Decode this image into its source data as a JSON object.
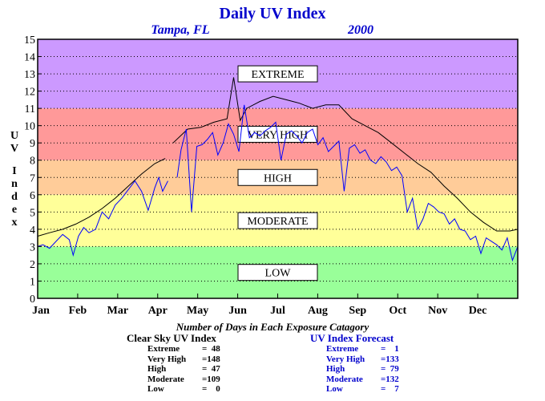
{
  "colors": {
    "title": "#0000cc",
    "forecast_line": "#0000ff",
    "clear_sky_line": "#000000",
    "band_low": "#99ff99",
    "band_moderate": "#ffff99",
    "band_high": "#ffcc99",
    "band_very_high": "#ff9999",
    "band_extreme": "#cc99ff"
  },
  "chart_data": {
    "type": "line",
    "title": "Daily UV Index",
    "subtitle_location": "Tampa, FL",
    "subtitle_year": "2000",
    "ylabel": "U V I n d e x",
    "ylim": [
      0,
      15
    ],
    "yticks": [
      "0",
      "1",
      "2",
      "3",
      "4",
      "5",
      "6",
      "7",
      "8",
      "9",
      "10",
      "11",
      "12",
      "13",
      "14",
      "15"
    ],
    "x_month_labels": [
      "Jan",
      "Feb",
      "Mar",
      "Apr",
      "May",
      "Jun",
      "Jul",
      "Aug",
      "Sep",
      "Oct",
      "Nov",
      "Dec"
    ],
    "xlim_days": [
      1,
      366
    ],
    "grid": true,
    "bands": [
      {
        "label": "LOW",
        "from": 0,
        "to": 3
      },
      {
        "label": "MODERATE",
        "from": 3,
        "to": 6
      },
      {
        "label": "HIGH",
        "from": 6,
        "to": 8
      },
      {
        "label": "VERY HIGH",
        "from": 8,
        "to": 11
      },
      {
        "label": "EXTREME",
        "from": 11,
        "to": 15
      }
    ],
    "series": [
      {
        "name": "Clear Sky UV Index",
        "segments": [
          {
            "days": [
              1,
              10,
              20,
              30,
              40,
              50,
              60,
              70,
              80,
              90,
              98
            ],
            "values": [
              3.6,
              3.8,
              4.0,
              4.3,
              4.7,
              5.2,
              5.8,
              6.5,
              7.2,
              7.8,
              8.1
            ]
          },
          {
            "days": [
              104,
              115,
              125,
              135,
              145,
              150,
              155,
              160,
              170,
              180,
              190,
              200,
              210,
              220,
              230,
              240,
              250,
              260,
              270,
              280,
              290,
              300,
              310,
              320,
              330,
              340,
              350,
              360,
              366
            ],
            "values": [
              9.0,
              9.8,
              9.9,
              10.2,
              10.4,
              12.8,
              10.3,
              11.0,
              11.4,
              11.7,
              11.5,
              11.3,
              11.0,
              11.2,
              11.2,
              10.4,
              10.0,
              9.6,
              9.0,
              8.4,
              7.8,
              7.3,
              6.5,
              5.8,
              5.0,
              4.4,
              3.9,
              3.9,
              4.0
            ]
          }
        ]
      },
      {
        "name": "UV Index Forecast",
        "segments": [
          {
            "days": [
              1,
              5,
              10,
              15,
              20,
              25,
              28,
              32,
              36,
              40,
              45,
              50,
              55,
              60,
              65,
              70,
              75,
              80,
              85,
              90,
              93,
              96,
              100
            ],
            "values": [
              3.0,
              3.1,
              2.9,
              3.3,
              3.7,
              3.4,
              2.5,
              3.6,
              4.1,
              3.8,
              4.0,
              5.0,
              4.6,
              5.4,
              5.8,
              6.3,
              6.8,
              6.2,
              5.1,
              6.4,
              7.0,
              6.2,
              6.8
            ]
          },
          {
            "days": [
              107,
              110,
              114,
              118,
              122,
              126,
              130,
              134,
              138,
              142,
              146,
              150,
              154,
              158,
              162,
              166,
              170,
              174,
              178,
              182,
              186,
              190,
              194,
              198,
              202,
              206,
              210,
              214,
              218,
              222,
              226,
              230,
              234,
              238,
              242,
              246,
              250,
              254,
              258,
              262,
              266,
              270,
              274,
              278,
              282,
              286,
              290,
              294,
              298,
              302,
              306,
              310,
              314,
              318,
              322,
              326,
              330,
              334,
              338,
              342,
              346,
              350,
              354,
              358,
              362,
              366
            ],
            "values": [
              7.0,
              8.6,
              9.8,
              5.0,
              8.8,
              8.9,
              9.2,
              9.6,
              8.3,
              9.0,
              10.1,
              9.5,
              8.5,
              11.2,
              9.3,
              9.6,
              9.4,
              9.7,
              9.9,
              10.2,
              8.0,
              9.5,
              9.7,
              9.4,
              9.0,
              9.6,
              9.8,
              8.9,
              9.3,
              8.5,
              8.8,
              9.1,
              6.2,
              8.7,
              8.9,
              8.4,
              8.6,
              8.0,
              7.8,
              8.2,
              7.9,
              7.4,
              7.6,
              7.1,
              5.0,
              5.8,
              4.0,
              4.6,
              5.5,
              5.3,
              5.0,
              4.9,
              4.3,
              4.6,
              4.0,
              3.9,
              3.4,
              3.6,
              2.6,
              3.5,
              3.3,
              3.1,
              2.8,
              3.5,
              2.2,
              3.0
            ]
          }
        ]
      }
    ]
  },
  "stats": {
    "section_title": "Number of Days in Each Exposure Catagory",
    "clear_sky": {
      "title": "Clear Sky UV Index",
      "rows": [
        {
          "label": "Extreme",
          "value": "=  48"
        },
        {
          "label": "Very High",
          "value": "=148"
        },
        {
          "label": "High",
          "value": "=  47"
        },
        {
          "label": "Moderate",
          "value": "=109"
        },
        {
          "label": "Low",
          "value": "=    0"
        }
      ]
    },
    "forecast": {
      "title": "UV Index Forecast",
      "rows": [
        {
          "label": "Extreme",
          "value": "=    1"
        },
        {
          "label": "Very High",
          "value": "=133"
        },
        {
          "label": "High",
          "value": "=  79"
        },
        {
          "label": "Moderate",
          "value": "=132"
        },
        {
          "label": "Low",
          "value": "=    7"
        }
      ]
    }
  }
}
